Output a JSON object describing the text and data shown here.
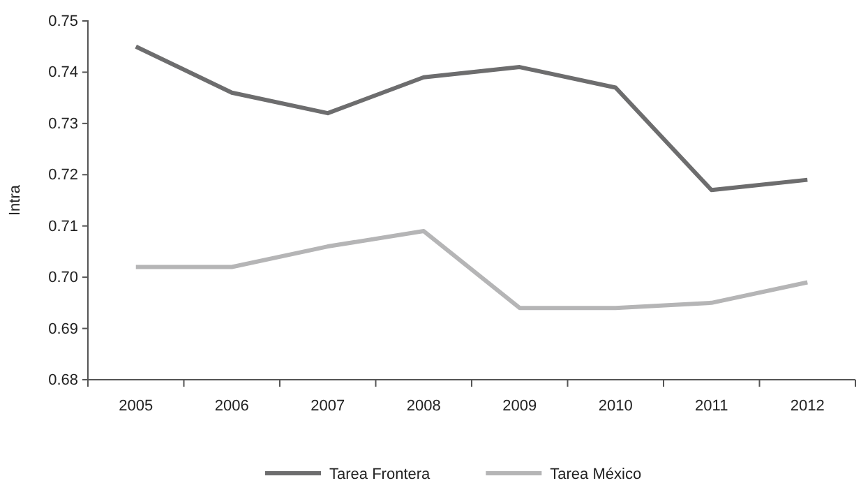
{
  "chart_data": {
    "type": "line",
    "ylabel": "Intra",
    "categories": [
      "2005",
      "2006",
      "2007",
      "2008",
      "2009",
      "2010",
      "2011",
      "2012"
    ],
    "series": [
      {
        "name": "Tarea Frontera",
        "color": "#6d6d6e",
        "values": [
          0.745,
          0.736,
          0.732,
          0.739,
          0.741,
          0.737,
          0.717,
          0.719
        ]
      },
      {
        "name": "Tarea México",
        "color": "#b5b5b6",
        "values": [
          0.702,
          0.702,
          0.706,
          0.709,
          0.694,
          0.694,
          0.695,
          0.699
        ]
      }
    ],
    "ylim": [
      0.68,
      0.75
    ],
    "yticks": [
      0.68,
      0.69,
      {
        "value": 0.7,
        "label": "0.70"
      },
      0.71,
      0.72,
      0.73,
      0.74,
      0.75
    ],
    "grid": false,
    "legend": "bottom",
    "marker": "none",
    "line_style": "solid"
  }
}
